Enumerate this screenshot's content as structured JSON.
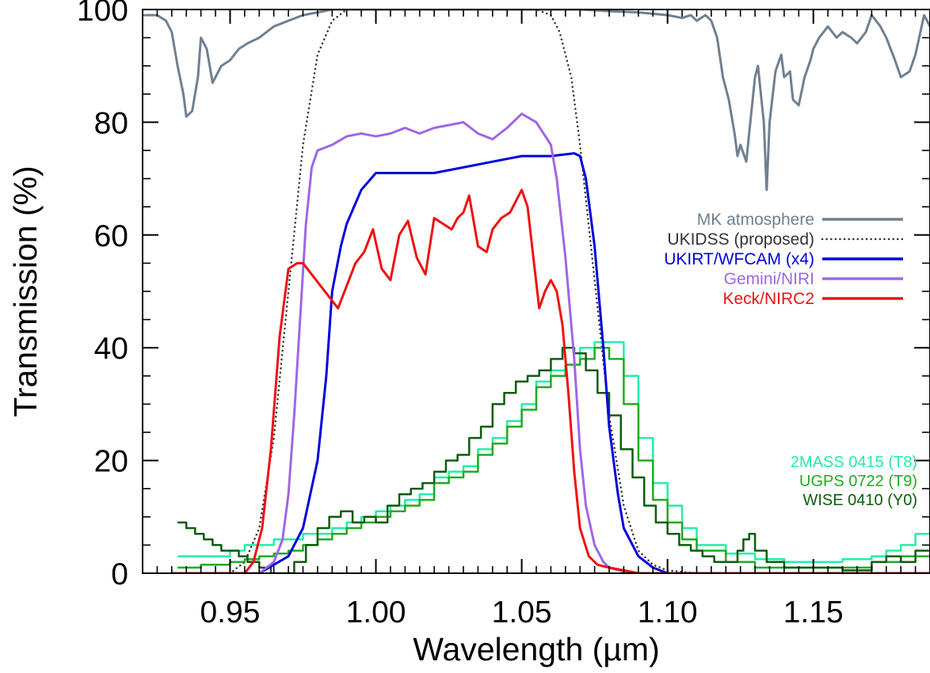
{
  "chart_data": {
    "type": "line",
    "xlabel": "Wavelength (µm)",
    "ylabel": "Transmission (%)",
    "xlim": [
      0.92,
      1.19
    ],
    "ylim": [
      0,
      100
    ],
    "x_ticks": [
      {
        "value": 0.95,
        "label": "0.95"
      },
      {
        "value": 1.0,
        "label": "1.00"
      },
      {
        "value": 1.05,
        "label": "1.05"
      },
      {
        "value": 1.1,
        "label": "1.10"
      },
      {
        "value": 1.15,
        "label": "1.15"
      }
    ],
    "y_ticks": [
      {
        "value": 0,
        "label": "0"
      },
      {
        "value": 20,
        "label": "20"
      },
      {
        "value": 40,
        "label": "40"
      },
      {
        "value": 60,
        "label": "60"
      },
      {
        "value": 80,
        "label": "80"
      },
      {
        "value": 100,
        "label": "100"
      }
    ],
    "grid": false,
    "legend_position": "right",
    "series": [
      {
        "name": "MK atmosphere",
        "color": "#708090",
        "style": "solid",
        "group": "legend",
        "x": [
          0.92,
          0.925,
          0.928,
          0.93,
          0.932,
          0.934,
          0.935,
          0.937,
          0.939,
          0.94,
          0.942,
          0.944,
          0.945,
          0.947,
          0.95,
          0.953,
          0.956,
          0.96,
          0.965,
          0.97,
          0.975,
          0.98,
          0.985,
          0.99,
          1.0,
          1.02,
          1.04,
          1.06,
          1.07,
          1.08,
          1.09,
          1.1,
          1.105,
          1.108,
          1.11,
          1.113,
          1.115,
          1.117,
          1.119,
          1.121,
          1.123,
          1.124,
          1.125,
          1.127,
          1.128,
          1.13,
          1.131,
          1.133,
          1.134,
          1.135,
          1.137,
          1.139,
          1.14,
          1.142,
          1.143,
          1.145,
          1.147,
          1.149,
          1.15,
          1.152,
          1.155,
          1.158,
          1.16,
          1.163,
          1.165,
          1.168,
          1.17,
          1.173,
          1.175,
          1.178,
          1.18,
          1.183,
          1.185,
          1.188,
          1.19
        ],
        "y": [
          99,
          99,
          98,
          96,
          90,
          85,
          81,
          82,
          88,
          95,
          93,
          87,
          88,
          90,
          91,
          93,
          94,
          95,
          97,
          98,
          99,
          99.5,
          100,
          100,
          100,
          100,
          100,
          100,
          100,
          99.7,
          99.5,
          99,
          98.5,
          99,
          98,
          99,
          98,
          95,
          88,
          84,
          78,
          74,
          76,
          73,
          78,
          88,
          90,
          80,
          68,
          80,
          89,
          92,
          88,
          89,
          84,
          83,
          88,
          91,
          93,
          95,
          97,
          95,
          96,
          95,
          94,
          96,
          99,
          97,
          95,
          91,
          88,
          89,
          92,
          99,
          97
        ]
      },
      {
        "name": "UKIDSS (proposed)",
        "color": "#333333",
        "style": "dotted",
        "group": "legend",
        "x": [
          0.93,
          0.95,
          0.955,
          0.96,
          0.965,
          0.97,
          0.975,
          0.98,
          0.985,
          0.99,
          1.0,
          1.02,
          1.04,
          1.055,
          1.06,
          1.063,
          1.067,
          1.07,
          1.075,
          1.08,
          1.085,
          1.09,
          1.095,
          1.1,
          1.11,
          1.19
        ],
        "y": [
          0,
          0,
          2,
          8,
          24,
          50,
          76,
          92,
          98,
          100,
          100,
          100,
          100,
          100,
          99,
          96,
          88,
          76,
          52,
          28,
          12,
          4,
          1.5,
          0.5,
          0,
          0
        ]
      },
      {
        "name": "UKIRT/WFCAM (x4)",
        "color": "#0000dd",
        "style": "solid",
        "group": "legend",
        "x": [
          0.93,
          0.96,
          0.97,
          0.975,
          0.98,
          0.983,
          0.985,
          0.988,
          0.99,
          0.995,
          1.0,
          1.01,
          1.02,
          1.03,
          1.04,
          1.05,
          1.06,
          1.068,
          1.07,
          1.072,
          1.075,
          1.078,
          1.08,
          1.083,
          1.085,
          1.09,
          1.095,
          1.1,
          1.19
        ],
        "y": [
          0,
          0,
          3,
          8,
          20,
          35,
          50,
          58,
          62,
          68,
          71,
          71,
          71,
          72,
          73,
          74,
          74,
          74.5,
          74,
          70,
          58,
          40,
          26,
          14,
          8,
          3,
          1,
          0,
          0
        ]
      },
      {
        "name": "Gemini/NIRI",
        "color": "#a066e6",
        "style": "solid",
        "group": "legend",
        "x": [
          0.93,
          0.96,
          0.965,
          0.968,
          0.97,
          0.972,
          0.974,
          0.976,
          0.978,
          0.98,
          0.985,
          0.99,
          0.995,
          1.0,
          1.005,
          1.01,
          1.015,
          1.02,
          1.025,
          1.03,
          1.035,
          1.04,
          1.045,
          1.05,
          1.055,
          1.06,
          1.062,
          1.065,
          1.068,
          1.07,
          1.072,
          1.075,
          1.078,
          1.08,
          1.085,
          1.09,
          1.19
        ],
        "y": [
          0,
          0,
          2,
          6,
          14,
          28,
          45,
          62,
          72,
          75,
          76,
          77.5,
          78,
          77.5,
          78,
          79,
          78,
          79,
          79.5,
          80,
          78,
          77,
          79,
          81.5,
          80,
          76,
          70,
          56,
          38,
          22,
          12,
          5,
          2,
          1,
          0.3,
          0,
          0
        ]
      },
      {
        "name": "Keck/NIRC2",
        "color": "#ee1111",
        "style": "solid",
        "group": "legend",
        "x": [
          0.93,
          0.955,
          0.958,
          0.961,
          0.964,
          0.967,
          0.97,
          0.973,
          0.975,
          0.978,
          0.981,
          0.984,
          0.987,
          0.99,
          0.993,
          0.996,
          0.999,
          1.002,
          1.005,
          1.008,
          1.011,
          1.014,
          1.017,
          1.02,
          1.023,
          1.026,
          1.028,
          1.03,
          1.032,
          1.035,
          1.038,
          1.04,
          1.043,
          1.046,
          1.048,
          1.05,
          1.052,
          1.054,
          1.056,
          1.058,
          1.06,
          1.062,
          1.064,
          1.066,
          1.068,
          1.07,
          1.073,
          1.076,
          1.08,
          1.085,
          1.09,
          1.19
        ],
        "y": [
          0,
          0,
          2,
          8,
          22,
          42,
          54,
          55,
          55,
          53,
          51,
          49,
          47,
          51,
          55,
          57,
          61,
          54,
          52,
          60,
          62.5,
          56,
          53,
          63,
          62,
          61,
          63,
          64,
          67,
          58,
          57,
          61,
          63,
          64,
          66,
          68,
          65,
          56,
          47,
          50,
          52,
          50,
          44,
          32,
          18,
          8,
          3,
          1.5,
          1,
          0.5,
          0,
          0
        ]
      },
      {
        "name": "2MASS 0415 (T8)",
        "color": "#22eeaa",
        "style": "steps",
        "group": "spectrum",
        "x": [
          0.932,
          0.94,
          0.95,
          0.955,
          0.96,
          0.965,
          0.97,
          0.975,
          0.98,
          0.985,
          0.99,
          0.995,
          1.0,
          1.005,
          1.01,
          1.015,
          1.02,
          1.025,
          1.03,
          1.035,
          1.04,
          1.045,
          1.05,
          1.055,
          1.06,
          1.065,
          1.07,
          1.075,
          1.08,
          1.085,
          1.09,
          1.095,
          1.1,
          1.105,
          1.11,
          1.12,
          1.13,
          1.14,
          1.15,
          1.16,
          1.17,
          1.175,
          1.18,
          1.185,
          1.19
        ],
        "y": [
          3,
          3,
          4,
          5,
          5,
          6,
          6,
          7,
          7,
          8,
          9,
          10,
          11,
          12,
          13,
          14,
          17,
          18,
          19,
          22,
          24,
          27,
          30,
          34,
          36,
          37,
          40,
          41,
          41,
          35,
          24,
          16,
          12,
          8,
          5,
          3.5,
          2.5,
          2,
          2,
          2.5,
          3,
          4,
          5,
          7,
          8
        ]
      },
      {
        "name": "UGPS 0722 (T9)",
        "color": "#22aa22",
        "style": "steps",
        "group": "spectrum",
        "x": [
          0.932,
          0.94,
          0.95,
          0.955,
          0.96,
          0.965,
          0.97,
          0.975,
          0.98,
          0.985,
          0.99,
          0.995,
          1.0,
          1.005,
          1.01,
          1.015,
          1.02,
          1.025,
          1.03,
          1.035,
          1.04,
          1.045,
          1.05,
          1.055,
          1.06,
          1.065,
          1.07,
          1.075,
          1.08,
          1.085,
          1.09,
          1.095,
          1.1,
          1.105,
          1.11,
          1.12,
          1.13,
          1.14,
          1.15,
          1.16,
          1.17,
          1.18,
          1.19
        ],
        "y": [
          1,
          1.5,
          2,
          2.5,
          3,
          3.5,
          4,
          5,
          6,
          7,
          8,
          9,
          10,
          11,
          12,
          13,
          16,
          17,
          18,
          21,
          23,
          26,
          29,
          33,
          35,
          37,
          38,
          40,
          38,
          30,
          20,
          13,
          9,
          6,
          4,
          2,
          1,
          1,
          1,
          1,
          2,
          3,
          3
        ]
      },
      {
        "name": "WISE 0410 (Y0)",
        "color": "#0c5c0c",
        "style": "steps",
        "group": "spectrum",
        "x": [
          0.932,
          0.935,
          0.938,
          0.941,
          0.944,
          0.947,
          0.95,
          0.953,
          0.956,
          0.96,
          0.964,
          0.968,
          0.972,
          0.976,
          0.98,
          0.984,
          0.988,
          0.992,
          0.996,
          1.0,
          1.004,
          1.008,
          1.012,
          1.016,
          1.02,
          1.024,
          1.028,
          1.032,
          1.036,
          1.04,
          1.044,
          1.048,
          1.052,
          1.056,
          1.06,
          1.064,
          1.068,
          1.072,
          1.076,
          1.08,
          1.084,
          1.088,
          1.092,
          1.096,
          1.1,
          1.104,
          1.108,
          1.112,
          1.116,
          1.12,
          1.124,
          1.126,
          1.128,
          1.13,
          1.134,
          1.14,
          1.15,
          1.16,
          1.17,
          1.175,
          1.18,
          1.185,
          1.19
        ],
        "y": [
          9,
          8,
          7,
          6,
          5,
          4,
          4,
          3,
          2,
          1,
          0,
          0,
          2,
          5,
          8,
          10,
          11,
          9,
          10,
          9,
          12,
          14,
          15,
          16,
          18,
          20,
          21,
          24,
          26,
          30,
          32,
          34,
          35,
          36,
          38,
          40,
          39,
          36,
          32,
          28,
          22,
          17,
          12,
          9,
          7,
          5,
          4,
          3,
          2,
          2,
          4,
          6,
          7,
          4,
          2,
          1,
          1,
          0.5,
          2,
          3,
          2,
          4,
          4
        ]
      }
    ]
  }
}
